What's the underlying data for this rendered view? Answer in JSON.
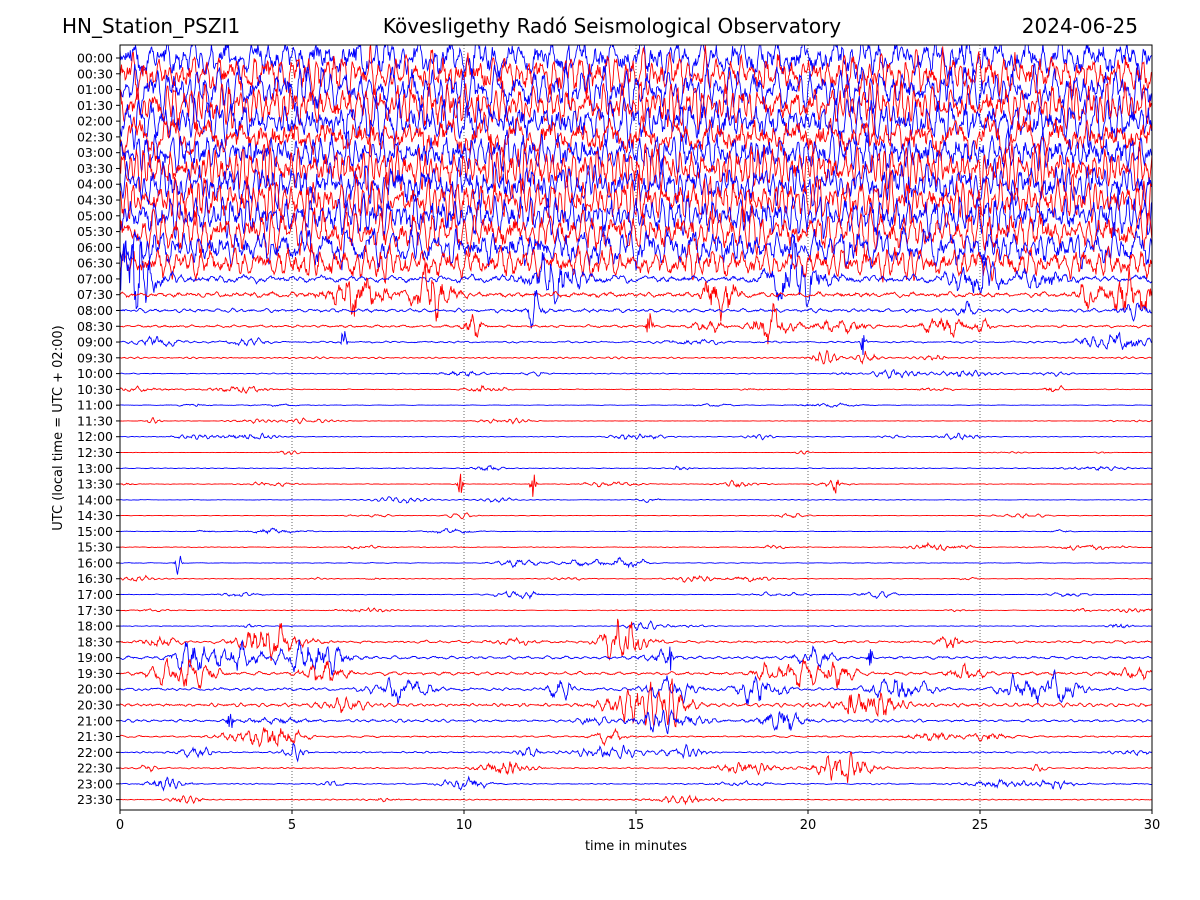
{
  "header": {
    "station": "HN_Station_PSZI1",
    "observatory": "Kövesligethy Radó Seismological Observatory",
    "date": "2024-06-25"
  },
  "chart_data": {
    "type": "line",
    "title": "Kövesligethy Radó Seismological Observatory",
    "xlabel": "time in minutes",
    "ylabel": "UTC (local time = UTC + 02:00)",
    "xlim": [
      0,
      30
    ],
    "xticks": [
      0,
      5,
      10,
      15,
      20,
      25,
      30
    ],
    "grid": "vertical dotted lines at x = 5, 10, 15, 20, 25",
    "row_labels": [
      "00:00",
      "00:30",
      "01:00",
      "01:30",
      "02:00",
      "02:30",
      "03:00",
      "03:30",
      "04:00",
      "04:30",
      "05:00",
      "05:30",
      "06:00",
      "06:30",
      "07:00",
      "07:30",
      "08:00",
      "08:30",
      "09:00",
      "09:30",
      "10:00",
      "10:30",
      "11:00",
      "11:30",
      "12:00",
      "12:30",
      "13:00",
      "13:30",
      "14:00",
      "14:30",
      "15:00",
      "15:30",
      "16:00",
      "16:30",
      "17:00",
      "17:30",
      "18:00",
      "18:30",
      "19:00",
      "19:30",
      "20:00",
      "20:30",
      "21:00",
      "21:30",
      "22:00",
      "22:30",
      "23:00",
      "23:30"
    ],
    "row_colors": [
      "#0000ff",
      "#ff0000"
    ],
    "row_activity": [
      9,
      9,
      9,
      9,
      9,
      9,
      9,
      9,
      9,
      9,
      9,
      9,
      8,
      7,
      5,
      4,
      2.5,
      2,
      1.2,
      1,
      0.6,
      0.5,
      0.4,
      0.3,
      0.4,
      0.3,
      0.5,
      0.4,
      0.35,
      0.3,
      0.5,
      0.5,
      0.5,
      0.4,
      0.4,
      0.35,
      0.5,
      1.6,
      2,
      2.2,
      1.8,
      2.4,
      1.8,
      1.2,
      1,
      0.9,
      0.8,
      0.7
    ],
    "notable_events": [
      {
        "row": "08:30",
        "minute": 15.4
      },
      {
        "row": "09:00",
        "minute": 6.5
      },
      {
        "row": "09:00",
        "minute": 21.6
      },
      {
        "row": "13:30",
        "minute": 9.9
      },
      {
        "row": "13:30",
        "minute": 12.0
      },
      {
        "row": "13:30",
        "minute": 20.8
      },
      {
        "row": "16:00",
        "minute": 1.7
      },
      {
        "row": "19:00",
        "minute": 16.0
      },
      {
        "row": "19:00",
        "minute": 21.8
      },
      {
        "row": "20:30",
        "minute": 21.2
      },
      {
        "row": "21:00",
        "minute": 3.2
      }
    ]
  }
}
